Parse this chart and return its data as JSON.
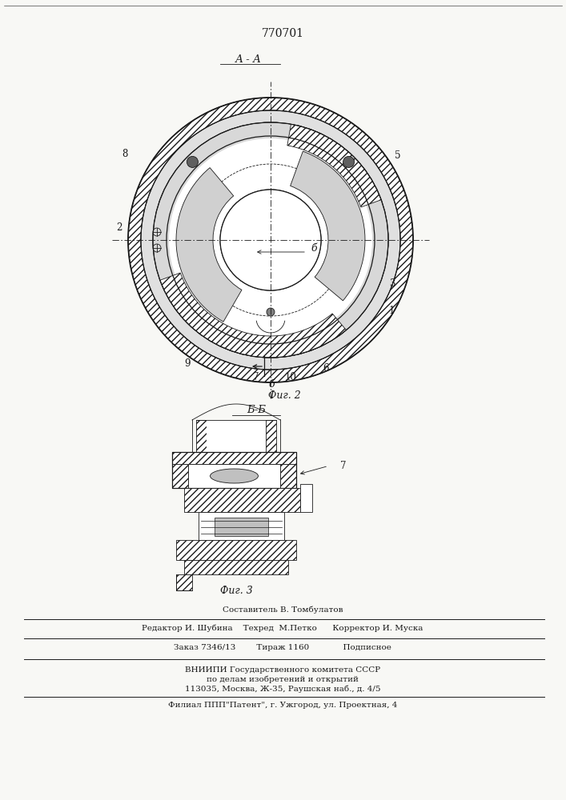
{
  "patent_number": "770701",
  "section_label_top": "А - А",
  "fig2_label": "Фиг. 2",
  "section_label_bb": "Б-Б",
  "fig3_label": "Фиг. 3",
  "b_label": "б",
  "footer_line1": "Составитель В. Томбулатов",
  "footer_line2": "Редактор И. Шубина    Техред  М.Петко      Корректор И. Муска",
  "footer_line3": "Заказ 7346/13        Тираж 1160             Подписное",
  "footer_line4": "ВНИИПИ Государственного комитета СССР",
  "footer_line5": "по делам изобретений и открытий",
  "footer_line6": "113035, Москва, Ж-35, Раушская наб., д. 4/5",
  "footer_line7": "Филиал ППП\"Патент\", г. Ужгород, ул. Проектная, 4",
  "bg_color": "#f8f8f5",
  "line_color": "#1a1a1a"
}
